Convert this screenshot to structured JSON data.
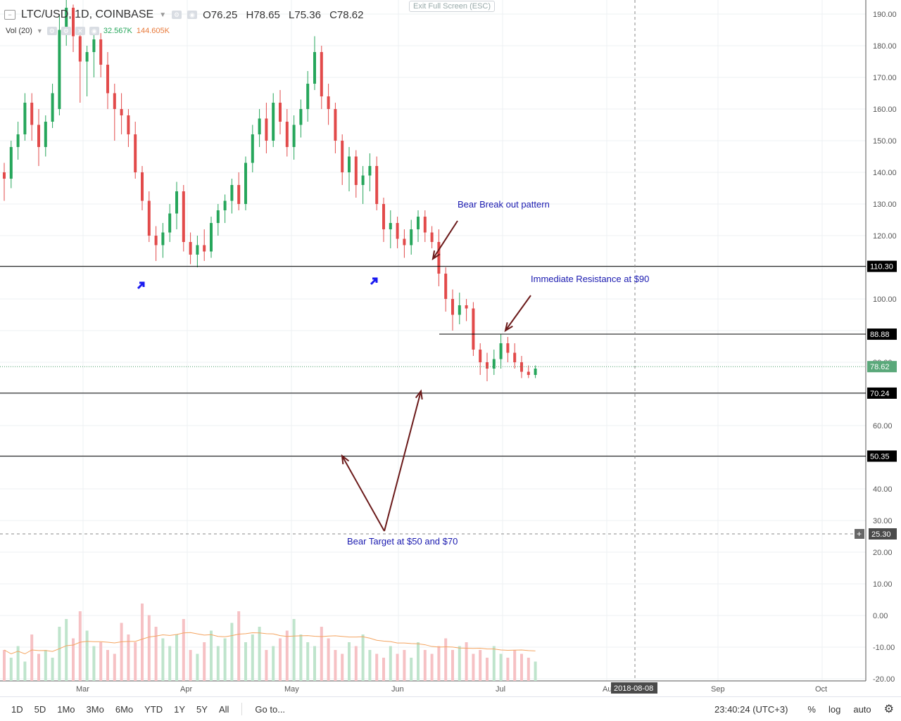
{
  "header": {
    "symbol": "LTC/USD, 1D, COINBASE",
    "open": "O76.25",
    "high": "H78.65",
    "low": "L75.36",
    "close": "C78.62",
    "vol_label": "Vol (20)",
    "vol_value1": "32.567K",
    "vol_value2": "144.605K",
    "exit_fullscreen": "Exit Full Screen (ESC)"
  },
  "toolbar": {
    "timeframes": [
      "1D",
      "5D",
      "1Mo",
      "3Mo",
      "6Mo",
      "YTD",
      "1Y",
      "5Y",
      "All"
    ],
    "goto": "Go to...",
    "time": "23:40:24 (UTC+3)",
    "percent": "%",
    "log": "log",
    "auto": "auto"
  },
  "colors": {
    "up": "#26a65b",
    "down": "#e24a4a",
    "annotation": "#1a1ab0",
    "arrow": "#6b1a1a",
    "ma": "#f4a460"
  },
  "chart_data": {
    "type": "candlestick",
    "price_axis": {
      "ticks": [
        190,
        180,
        170,
        160,
        150,
        140,
        130,
        120,
        110,
        100,
        90,
        80,
        70,
        60,
        50,
        40,
        30,
        20,
        10,
        0,
        -10,
        -20
      ],
      "tick_labels": [
        "190.00",
        "180.00",
        "170.00",
        "160.00",
        "150.00",
        "140.00",
        "130.00",
        "120.00",
        "110.30",
        "100.00",
        "88.88",
        "80.00",
        "70.24",
        "60.00",
        "50.35",
        "40.00",
        "30.00",
        "20.00",
        "10.00",
        "0.00",
        "-10.00",
        "-20.00"
      ]
    },
    "x_labels": [
      "Mar",
      "Apr",
      "May",
      "Jun",
      "Jul",
      "Aug",
      "Sep",
      "Oct"
    ],
    "crosshair_date": "2018-08-08",
    "last_price": 78.62,
    "horizontal_levels": [
      110.3,
      88.88,
      70.24,
      50.35
    ],
    "level_labels": [
      "110.30",
      "88.88",
      "70.24",
      "50.35"
    ],
    "crosshair_price_label": "25.30",
    "annotations": [
      "Bear Break out pattern",
      "Immediate Resistance at $90",
      "Bear Target at $50 and $70"
    ],
    "ohlc": [
      [
        140,
        143,
        131,
        138
      ],
      [
        138,
        150,
        135,
        148
      ],
      [
        148,
        156,
        144,
        152
      ],
      [
        152,
        165,
        150,
        162
      ],
      [
        162,
        165,
        150,
        155
      ],
      [
        155,
        160,
        142,
        148
      ],
      [
        148,
        158,
        145,
        156
      ],
      [
        156,
        168,
        154,
        165
      ],
      [
        160,
        190,
        158,
        185
      ],
      [
        185,
        195,
        180,
        192
      ],
      [
        192,
        193,
        178,
        183
      ],
      [
        183,
        186,
        162,
        175
      ],
      [
        175,
        180,
        164,
        178
      ],
      [
        178,
        185,
        170,
        182
      ],
      [
        182,
        184,
        170,
        174
      ],
      [
        174,
        178,
        160,
        165
      ],
      [
        165,
        168,
        150,
        160
      ],
      [
        160,
        165,
        152,
        158
      ],
      [
        158,
        160,
        148,
        152
      ],
      [
        152,
        156,
        138,
        140
      ],
      [
        140,
        142,
        128,
        131
      ],
      [
        131,
        134,
        118,
        120
      ],
      [
        120,
        123,
        112,
        117
      ],
      [
        117,
        124,
        113,
        121
      ],
      [
        121,
        130,
        118,
        127
      ],
      [
        127,
        137,
        122,
        134
      ],
      [
        134,
        136,
        115,
        118
      ],
      [
        118,
        121,
        111,
        114
      ],
      [
        114,
        120,
        110,
        117
      ],
      [
        117,
        122,
        112,
        115
      ],
      [
        115,
        126,
        113,
        124
      ],
      [
        124,
        130,
        120,
        128
      ],
      [
        128,
        133,
        124,
        131
      ],
      [
        131,
        138,
        127,
        136
      ],
      [
        136,
        140,
        128,
        130
      ],
      [
        130,
        145,
        128,
        143
      ],
      [
        143,
        155,
        140,
        152
      ],
      [
        152,
        160,
        148,
        157
      ],
      [
        157,
        162,
        146,
        150
      ],
      [
        150,
        165,
        148,
        162
      ],
      [
        162,
        166,
        152,
        156
      ],
      [
        156,
        160,
        145,
        148
      ],
      [
        148,
        158,
        144,
        155
      ],
      [
        155,
        163,
        151,
        160
      ],
      [
        160,
        172,
        156,
        168
      ],
      [
        168,
        183,
        166,
        178
      ],
      [
        178,
        180,
        160,
        164
      ],
      [
        164,
        168,
        155,
        160
      ],
      [
        160,
        162,
        146,
        150
      ],
      [
        150,
        152,
        136,
        140
      ],
      [
        140,
        148,
        134,
        145
      ],
      [
        145,
        147,
        132,
        136
      ],
      [
        136,
        142,
        130,
        139
      ],
      [
        139,
        146,
        134,
        142
      ],
      [
        142,
        145,
        128,
        130
      ],
      [
        130,
        132,
        118,
        122
      ],
      [
        122,
        128,
        116,
        124
      ],
      [
        124,
        126,
        116,
        119
      ],
      [
        119,
        122,
        113,
        117
      ],
      [
        117,
        125,
        114,
        122
      ],
      [
        122,
        128,
        118,
        126
      ],
      [
        126,
        128,
        118,
        121
      ],
      [
        121,
        123,
        116,
        118
      ],
      [
        118,
        122,
        104,
        108
      ],
      [
        108,
        110,
        96,
        100
      ],
      [
        100,
        103,
        90,
        95
      ],
      [
        95,
        102,
        92,
        98
      ],
      [
        98,
        100,
        93,
        97
      ],
      [
        97,
        99,
        82,
        84
      ],
      [
        84,
        86,
        76,
        80
      ],
      [
        80,
        83,
        74,
        78
      ],
      [
        78,
        84,
        76,
        81
      ],
      [
        81,
        89,
        78,
        86
      ],
      [
        86,
        88,
        80,
        83
      ],
      [
        83,
        86,
        78,
        80
      ],
      [
        80,
        82,
        75,
        77
      ],
      [
        77,
        79,
        75,
        76
      ],
      [
        76,
        79,
        75,
        78
      ]
    ],
    "volume": [
      8,
      6,
      9,
      5,
      12,
      7,
      8,
      6,
      14,
      16,
      11,
      18,
      13,
      9,
      10,
      8,
      7,
      15,
      12,
      10,
      20,
      17,
      14,
      11,
      9,
      12,
      16,
      8,
      7,
      10,
      13,
      9,
      11,
      15,
      18,
      10,
      12,
      14,
      8,
      9,
      11,
      13,
      16,
      12,
      10,
      9,
      14,
      11,
      8,
      7,
      10,
      9,
      12,
      8,
      7,
      6,
      9,
      7,
      8,
      6,
      10,
      8,
      7,
      9,
      11,
      8,
      9,
      10,
      7,
      8,
      6,
      9,
      7,
      6,
      8,
      7,
      6,
      5
    ],
    "volume_ma_note": "20-period moving average of volume"
  }
}
